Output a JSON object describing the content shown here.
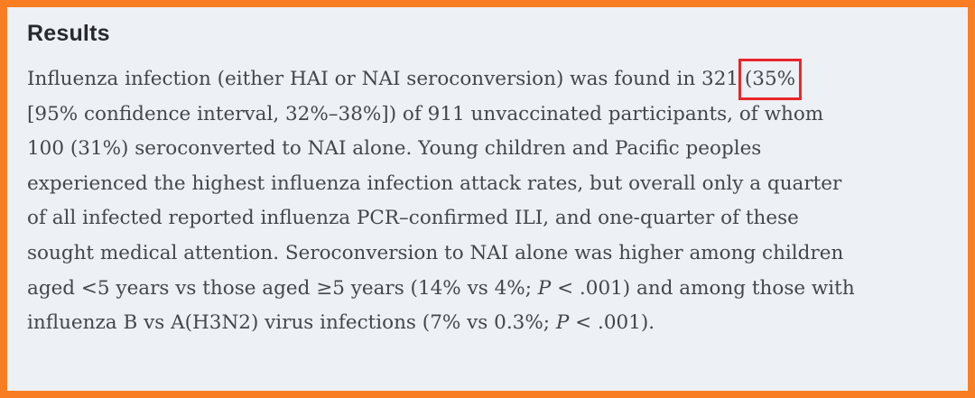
{
  "heading": {
    "text": "Results"
  },
  "paragraph": {
    "lines": [
      {
        "segments": [
          {
            "text": "Influenza infection (either HAI or NAI seroconversion) was found in 321 ",
            "style": "normal"
          },
          {
            "text": "(35%",
            "style": "highlight-box"
          }
        ]
      },
      {
        "segments": [
          {
            "text": "[95% confidence interval, 32%–38%]) of 911 unvaccinated participants, of whom",
            "style": "normal"
          }
        ]
      },
      {
        "segments": [
          {
            "text": "100 (31%) seroconverted to NAI alone. Young children and Pacific peoples",
            "style": "normal"
          }
        ]
      },
      {
        "segments": [
          {
            "text": "experienced the highest influenza infection attack rates, but overall only a quarter",
            "style": "normal"
          }
        ]
      },
      {
        "segments": [
          {
            "text": "of all infected reported influenza PCR–confirmed ILI, and one-quarter of these",
            "style": "normal"
          }
        ]
      },
      {
        "segments": [
          {
            "text": "sought medical attention. Seroconversion to NAI alone was higher among children",
            "style": "normal"
          }
        ]
      },
      {
        "segments": [
          {
            "text": "aged <5 years vs those aged ≥5 years (14% vs 4%; ",
            "style": "normal"
          },
          {
            "text": "P",
            "style": "italic"
          },
          {
            "text": " < .001) and among those with",
            "style": "normal"
          }
        ]
      },
      {
        "segments": [
          {
            "text": "influenza B vs A(H3N2) virus infections (7% vs 0.3%; ",
            "style": "normal"
          },
          {
            "text": "P",
            "style": "italic"
          },
          {
            "text": " < .001).",
            "style": "normal"
          }
        ]
      }
    ]
  },
  "annotation": {
    "highlighted_text": "(35%",
    "shape": "red-rectangle"
  },
  "colors": {
    "border": "#f97e23",
    "background": "#edf0f4",
    "heading": "#26292d",
    "body": "#42474d",
    "highlight_box": "#e8262b"
  }
}
